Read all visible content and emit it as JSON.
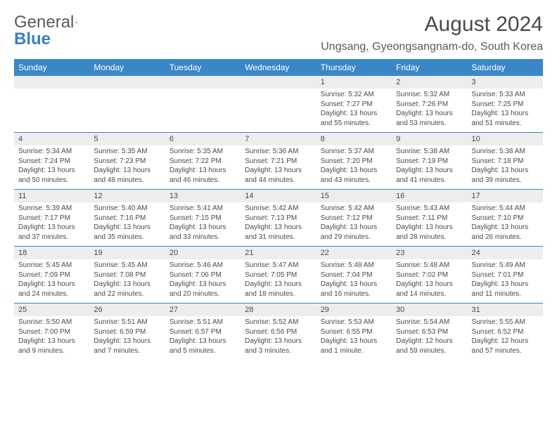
{
  "brand": {
    "name_a": "General",
    "name_b": "Blue"
  },
  "title": "August 2024",
  "location": "Ungsang, Gyeongsangnam-do, South Korea",
  "colors": {
    "header_bg": "#3a87c7",
    "header_text": "#ffffff",
    "daynum_bg": "#ededed",
    "cell_text": "#4a4a4a",
    "rule": "#3a87c7",
    "page_bg": "#ffffff",
    "logo_gray": "#5a5a5a",
    "logo_blue": "#3a7fc4"
  },
  "typography": {
    "title_fontsize": 30,
    "location_fontsize": 16,
    "header_fontsize": 12,
    "daynum_fontsize": 11,
    "cell_fontsize": 10
  },
  "day_headers": [
    "Sunday",
    "Monday",
    "Tuesday",
    "Wednesday",
    "Thursday",
    "Friday",
    "Saturday"
  ],
  "weeks": [
    [
      null,
      null,
      null,
      null,
      {
        "n": "1",
        "sr": "5:32 AM",
        "ss": "7:27 PM",
        "dl": "13 hours and 55 minutes."
      },
      {
        "n": "2",
        "sr": "5:32 AM",
        "ss": "7:26 PM",
        "dl": "13 hours and 53 minutes."
      },
      {
        "n": "3",
        "sr": "5:33 AM",
        "ss": "7:25 PM",
        "dl": "13 hours and 51 minutes."
      }
    ],
    [
      {
        "n": "4",
        "sr": "5:34 AM",
        "ss": "7:24 PM",
        "dl": "13 hours and 50 minutes."
      },
      {
        "n": "5",
        "sr": "5:35 AM",
        "ss": "7:23 PM",
        "dl": "13 hours and 48 minutes."
      },
      {
        "n": "6",
        "sr": "5:35 AM",
        "ss": "7:22 PM",
        "dl": "13 hours and 46 minutes."
      },
      {
        "n": "7",
        "sr": "5:36 AM",
        "ss": "7:21 PM",
        "dl": "13 hours and 44 minutes."
      },
      {
        "n": "8",
        "sr": "5:37 AM",
        "ss": "7:20 PM",
        "dl": "13 hours and 43 minutes."
      },
      {
        "n": "9",
        "sr": "5:38 AM",
        "ss": "7:19 PM",
        "dl": "13 hours and 41 minutes."
      },
      {
        "n": "10",
        "sr": "5:38 AM",
        "ss": "7:18 PM",
        "dl": "13 hours and 39 minutes."
      }
    ],
    [
      {
        "n": "11",
        "sr": "5:39 AM",
        "ss": "7:17 PM",
        "dl": "13 hours and 37 minutes."
      },
      {
        "n": "12",
        "sr": "5:40 AM",
        "ss": "7:16 PM",
        "dl": "13 hours and 35 minutes."
      },
      {
        "n": "13",
        "sr": "5:41 AM",
        "ss": "7:15 PM",
        "dl": "13 hours and 33 minutes."
      },
      {
        "n": "14",
        "sr": "5:42 AM",
        "ss": "7:13 PM",
        "dl": "13 hours and 31 minutes."
      },
      {
        "n": "15",
        "sr": "5:42 AM",
        "ss": "7:12 PM",
        "dl": "13 hours and 29 minutes."
      },
      {
        "n": "16",
        "sr": "5:43 AM",
        "ss": "7:11 PM",
        "dl": "13 hours and 28 minutes."
      },
      {
        "n": "17",
        "sr": "5:44 AM",
        "ss": "7:10 PM",
        "dl": "13 hours and 26 minutes."
      }
    ],
    [
      {
        "n": "18",
        "sr": "5:45 AM",
        "ss": "7:09 PM",
        "dl": "13 hours and 24 minutes."
      },
      {
        "n": "19",
        "sr": "5:45 AM",
        "ss": "7:08 PM",
        "dl": "13 hours and 22 minutes."
      },
      {
        "n": "20",
        "sr": "5:46 AM",
        "ss": "7:06 PM",
        "dl": "13 hours and 20 minutes."
      },
      {
        "n": "21",
        "sr": "5:47 AM",
        "ss": "7:05 PM",
        "dl": "13 hours and 18 minutes."
      },
      {
        "n": "22",
        "sr": "5:48 AM",
        "ss": "7:04 PM",
        "dl": "13 hours and 16 minutes."
      },
      {
        "n": "23",
        "sr": "5:48 AM",
        "ss": "7:02 PM",
        "dl": "13 hours and 14 minutes."
      },
      {
        "n": "24",
        "sr": "5:49 AM",
        "ss": "7:01 PM",
        "dl": "13 hours and 11 minutes."
      }
    ],
    [
      {
        "n": "25",
        "sr": "5:50 AM",
        "ss": "7:00 PM",
        "dl": "13 hours and 9 minutes."
      },
      {
        "n": "26",
        "sr": "5:51 AM",
        "ss": "6:59 PM",
        "dl": "13 hours and 7 minutes."
      },
      {
        "n": "27",
        "sr": "5:51 AM",
        "ss": "6:57 PM",
        "dl": "13 hours and 5 minutes."
      },
      {
        "n": "28",
        "sr": "5:52 AM",
        "ss": "6:56 PM",
        "dl": "13 hours and 3 minutes."
      },
      {
        "n": "29",
        "sr": "5:53 AM",
        "ss": "6:55 PM",
        "dl": "13 hours and 1 minute."
      },
      {
        "n": "30",
        "sr": "5:54 AM",
        "ss": "6:53 PM",
        "dl": "12 hours and 59 minutes."
      },
      {
        "n": "31",
        "sr": "5:55 AM",
        "ss": "6:52 PM",
        "dl": "12 hours and 57 minutes."
      }
    ]
  ],
  "labels": {
    "sunrise": "Sunrise:",
    "sunset": "Sunset:",
    "daylight": "Daylight:"
  }
}
